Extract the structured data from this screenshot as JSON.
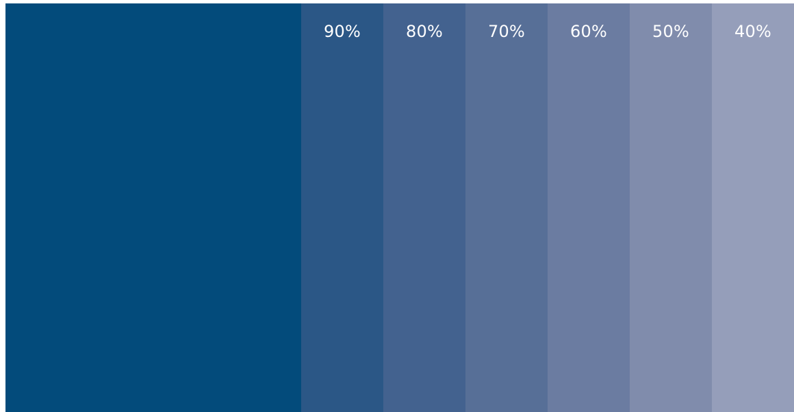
{
  "palette": {
    "base": {
      "color": "#034b7b"
    },
    "tints": [
      {
        "label": "90%",
        "color": "#2b5786"
      },
      {
        "label": "80%",
        "color": "#43628f"
      },
      {
        "label": "70%",
        "color": "#576f97"
      },
      {
        "label": "60%",
        "color": "#6b7ca1"
      },
      {
        "label": "50%",
        "color": "#808cac"
      },
      {
        "label": "40%",
        "color": "#959eba"
      }
    ]
  }
}
